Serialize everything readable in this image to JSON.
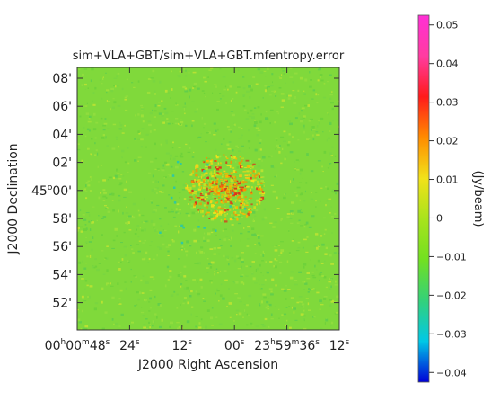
{
  "chart_data": {
    "type": "heatmap",
    "title": "sim+VLA+GBT/sim+VLA+GBT.mfentropy.error",
    "xlabel": "J2000 Right Ascension",
    "ylabel": "J2000 Declination",
    "x_ticks": [
      {
        "h": "00",
        "m": "00",
        "s": "48"
      },
      {
        "s": "24"
      },
      {
        "s": "12"
      },
      {
        "s": "00"
      },
      {
        "h": "23",
        "m": "59",
        "s": "36"
      },
      {
        "s": "12"
      }
    ],
    "y_ticks": [
      {
        "label": "08'"
      },
      {
        "label": "06'"
      },
      {
        "label": "04'"
      },
      {
        "label": "02'"
      },
      {
        "deg": "45",
        "label": "00'"
      },
      {
        "label": "58'"
      },
      {
        "label": "56'"
      },
      {
        "label": "54'"
      },
      {
        "label": "52'"
      }
    ],
    "colorbar": {
      "label": "(Jy/beam)",
      "range": [
        -0.04,
        0.05
      ],
      "ticks": [
        "0.05",
        "0.04",
        "0.03",
        "0.02",
        "0.01",
        "0",
        "−0.01",
        "−0.02",
        "−0.03",
        "−0.04"
      ],
      "tick_values": [
        0.05,
        0.04,
        0.03,
        0.02,
        0.01,
        0,
        -0.01,
        -0.02,
        -0.03,
        -0.04
      ],
      "colors": [
        "#0000d8",
        "#00c8e6",
        "#33d17a",
        "#72e021",
        "#a8e31c",
        "#f2e21a",
        "#ff8c00",
        "#ff1a1a",
        "#ff3ca0",
        "#ff2fd6"
      ]
    },
    "background_value": 0.003,
    "background_color": "#80d93b",
    "hot_region_color": "#e02a1a"
  }
}
